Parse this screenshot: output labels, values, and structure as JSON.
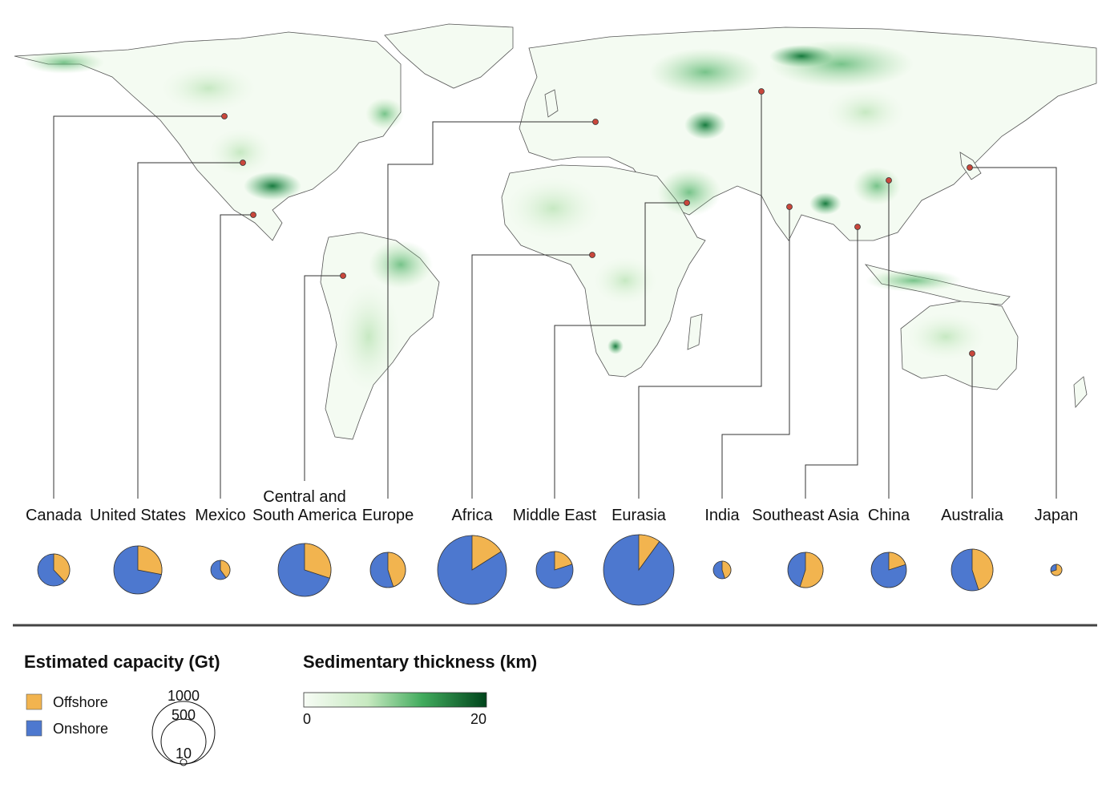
{
  "colors": {
    "offshore": "#f2b44f",
    "onshore": "#4d78cf",
    "marker": "#c9473c",
    "land": "#ffffff",
    "green_light": "#e6f5e4",
    "green_mid": "#7cc87e",
    "green_dark": "#006d2c"
  },
  "regions": [
    {
      "id": "canada",
      "label_lines": [
        "Canada"
      ],
      "offshore_share": 0.38
    },
    {
      "id": "united-states",
      "label_lines": [
        "United States"
      ],
      "offshore_share": 0.28
    },
    {
      "id": "mexico",
      "label_lines": [
        "Mexico"
      ],
      "offshore_share": 0.4
    },
    {
      "id": "central-south-america",
      "label_lines": [
        "Central and",
        "South America"
      ],
      "offshore_share": 0.3
    },
    {
      "id": "europe",
      "label_lines": [
        "Europe"
      ],
      "offshore_share": 0.45
    },
    {
      "id": "africa",
      "label_lines": [
        "Africa"
      ],
      "offshore_share": 0.16
    },
    {
      "id": "middle-east",
      "label_lines": [
        "Middle East"
      ],
      "offshore_share": 0.2
    },
    {
      "id": "eurasia",
      "label_lines": [
        "Eurasia"
      ],
      "offshore_share": 0.1
    },
    {
      "id": "india",
      "label_lines": [
        "India"
      ],
      "offshore_share": 0.45
    },
    {
      "id": "southeast-asia",
      "label_lines": [
        "Southeast Asia"
      ],
      "offshore_share": 0.55
    },
    {
      "id": "china",
      "label_lines": [
        "China"
      ],
      "offshore_share": 0.2
    },
    {
      "id": "australia",
      "label_lines": [
        "Australia"
      ],
      "offshore_share": 0.45
    },
    {
      "id": "japan",
      "label_lines": [
        "Japan"
      ],
      "offshore_share": 0.7
    }
  ],
  "legend": {
    "capacity_title": "Estimated capacity (Gt)",
    "offshore_label": "Offshore",
    "onshore_label": "Onshore",
    "size_ticks": [
      "1000",
      "500",
      "10"
    ],
    "thickness_title": "Sedimentary thickness (km)",
    "colorbar_min": "0",
    "colorbar_max": "20"
  }
}
